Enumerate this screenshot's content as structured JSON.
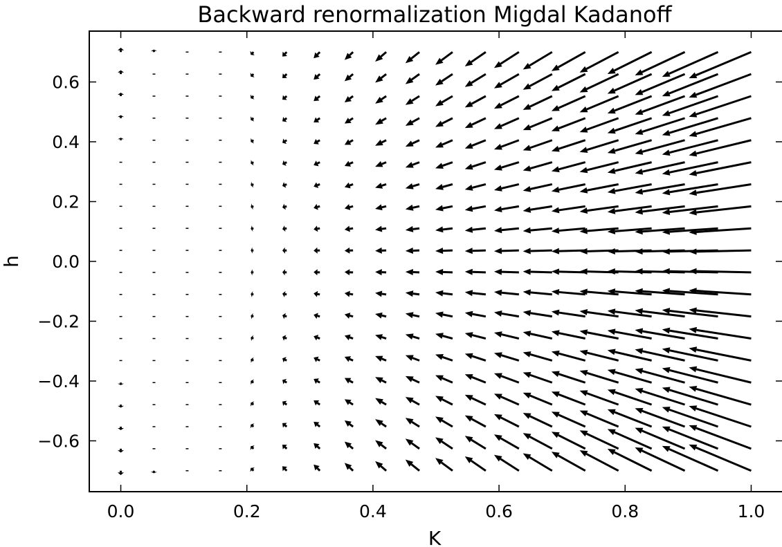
{
  "chart_data": {
    "type": "quiver",
    "title": "Backward renormalization Migdal Kadanoff",
    "xlabel": "K",
    "ylabel": "h",
    "xlim": [
      -0.05,
      1.05
    ],
    "ylim": [
      -0.77,
      0.77
    ],
    "grid": false,
    "x_ticks": [
      0.0,
      0.2,
      0.4,
      0.6,
      0.8,
      1.0
    ],
    "x_tick_labels": [
      "0.0",
      "0.2",
      "0.4",
      "0.6",
      "0.8",
      "1.0"
    ],
    "y_ticks": [
      -0.6,
      -0.4,
      -0.2,
      0.0,
      0.2,
      0.4,
      0.6
    ],
    "y_tick_labels": [
      "−0.6",
      "−0.4",
      "−0.2",
      "0.0",
      "0.2",
      "0.4",
      "0.6"
    ],
    "grid_points": {
      "x_start": 0.0,
      "x_stop": 1.0,
      "x_count": 20,
      "y_start": -0.7,
      "y_stop": 0.7,
      "y_count": 20
    },
    "arrow_color": "#000000"
  }
}
